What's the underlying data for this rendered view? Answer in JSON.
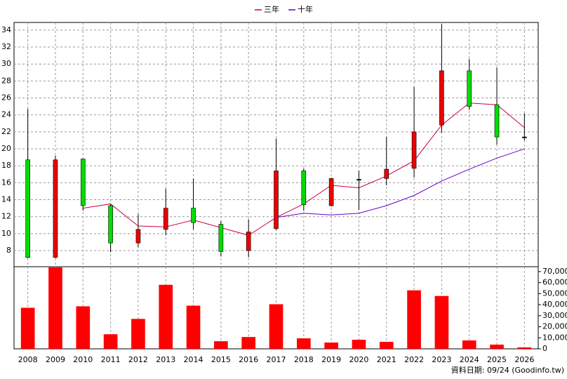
{
  "chart_data": {
    "type": "candlestick",
    "categories": [
      "2008",
      "2009",
      "2010",
      "2011",
      "2012",
      "2013",
      "2014",
      "2015",
      "2016",
      "2017",
      "2018",
      "2019",
      "2020",
      "2021",
      "2022",
      "2023",
      "2024",
      "2025",
      "2026"
    ],
    "open": [
      18.7,
      7.2,
      18.8,
      13.3,
      8.9,
      10.5,
      13.0,
      11.1,
      8.0,
      10.6,
      17.4,
      13.3,
      16.3,
      16.5,
      17.7,
      22.8,
      29.2,
      25.2,
      21.4
    ],
    "high": [
      24.7,
      19.2,
      18.8,
      13.5,
      12.3,
      15.3,
      16.5,
      11.5,
      11.7,
      21.2,
      17.7,
      16.6,
      17.4,
      21.4,
      27.3,
      34.7,
      30.6,
      29.6,
      24.2
    ],
    "low": [
      7.1,
      7.1,
      12.7,
      7.8,
      8.4,
      9.8,
      10.5,
      7.3,
      7.2,
      10.4,
      12.7,
      13.2,
      12.8,
      15.7,
      16.6,
      21.9,
      24.6,
      20.5,
      21.0
    ],
    "close": [
      7.2,
      18.7,
      13.3,
      8.9,
      10.5,
      13.0,
      11.3,
      7.9,
      10.2,
      17.4,
      13.4,
      16.5,
      16.4,
      17.6,
      22.0,
      29.2,
      25.0,
      21.4,
      21.3
    ],
    "up_color": "#ee0000",
    "down_color": "#00dd00",
    "series": [
      {
        "name": "三年",
        "color": "#cc0044",
        "values": [
          null,
          null,
          13.0,
          13.5,
          10.9,
          10.8,
          11.6,
          10.7,
          9.8,
          11.9,
          13.5,
          15.7,
          15.4,
          16.8,
          18.6,
          22.8,
          25.4,
          25.2,
          22.5
        ]
      },
      {
        "name": "十年",
        "color": "#6600cc",
        "values": [
          null,
          null,
          null,
          null,
          null,
          null,
          null,
          null,
          null,
          11.9,
          12.4,
          12.2,
          12.4,
          13.3,
          14.5,
          16.2,
          17.6,
          18.9,
          20.0
        ]
      }
    ],
    "ylim": [
      6.1,
      34.9
    ],
    "yticks": [
      8,
      10,
      12,
      14,
      16,
      18,
      20,
      22,
      24,
      26,
      28,
      30,
      32,
      34
    ],
    "grid": true,
    "volume": {
      "type": "bar",
      "color": "#ff0000",
      "values": [
        37200,
        73800,
        38500,
        13200,
        27100,
        58000,
        39100,
        6900,
        10700,
        40400,
        9500,
        5700,
        8200,
        6300,
        53000,
        47900,
        7600,
        3800,
        1300
      ],
      "ylim": [
        0,
        74400
      ],
      "yticks": [
        0,
        {
          "value": 10000,
          "label": "10,000"
        },
        {
          "value": 20000,
          "label": "20,000"
        },
        {
          "value": 30000,
          "label": "30,000"
        },
        {
          "value": 40000,
          "label": "40,000"
        },
        {
          "value": 50000,
          "label": "50,000"
        },
        {
          "value": 60000,
          "label": "60,000"
        },
        {
          "value": 70000,
          "label": "70,000"
        }
      ]
    },
    "footer": "資料日期: 09/24  (Goodinfo.tw)"
  }
}
